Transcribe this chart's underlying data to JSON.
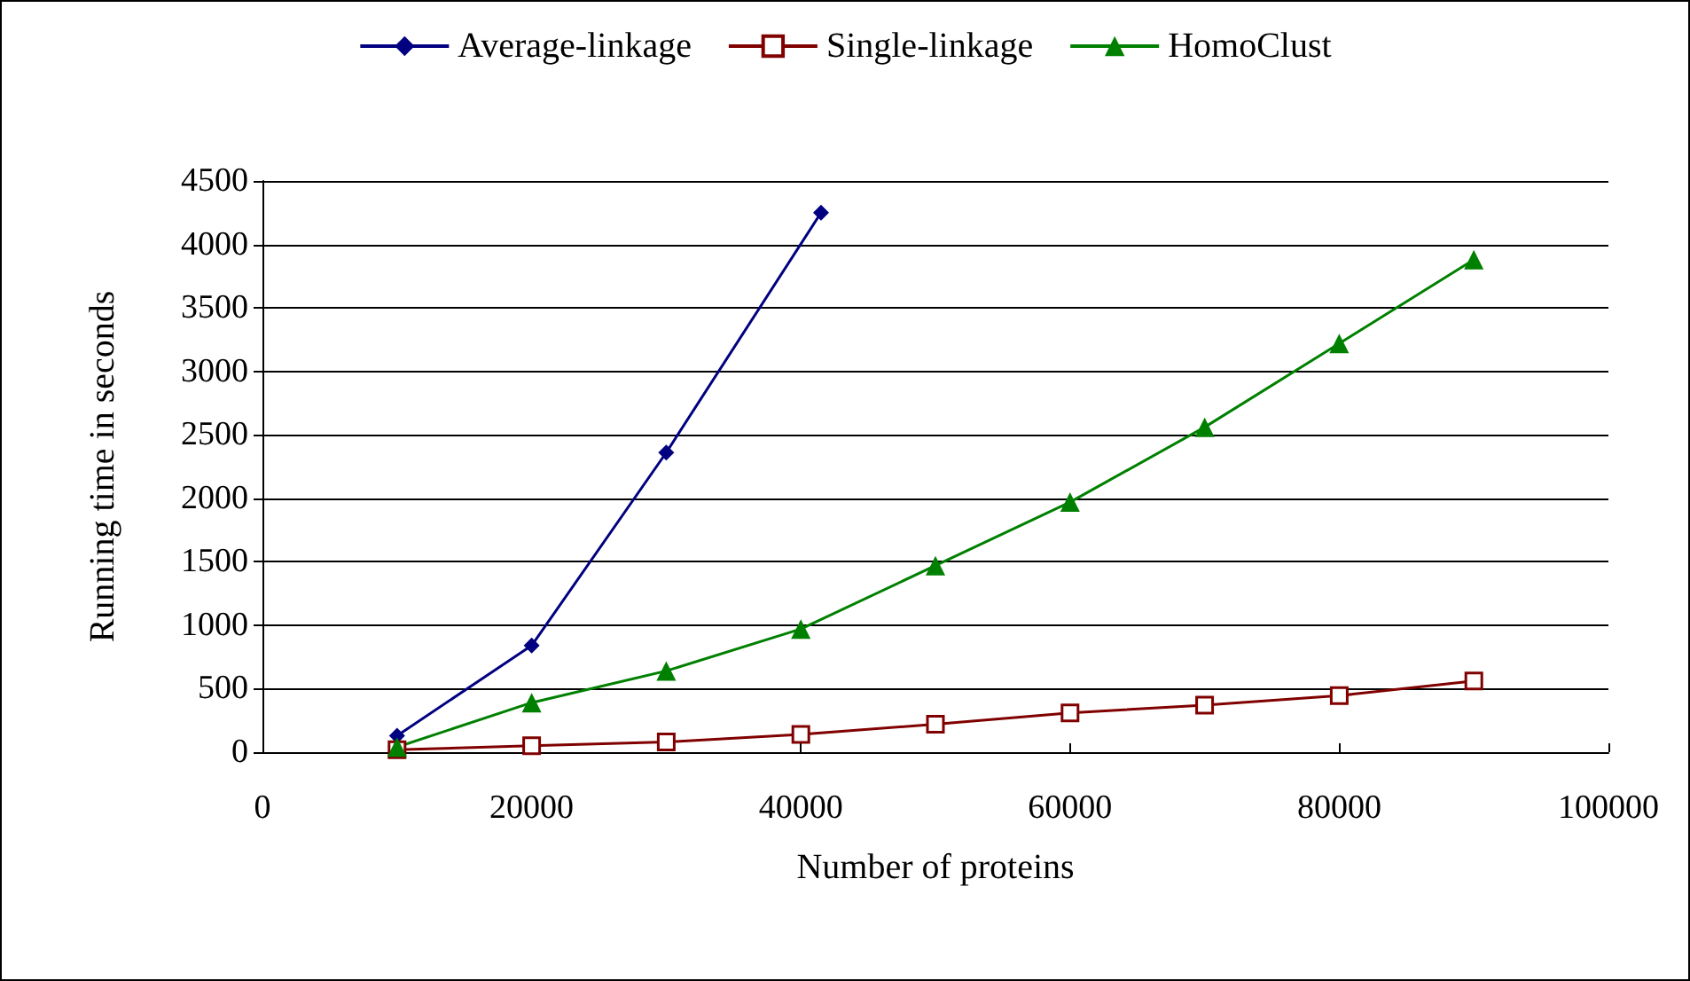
{
  "chart_data": {
    "type": "line",
    "xlabel": "Number of proteins",
    "ylabel": "Running time in seconds",
    "x": [
      10000,
      20000,
      30000,
      40000,
      50000,
      60000,
      70000,
      80000,
      90000
    ],
    "series": [
      {
        "name": "Average-linkage",
        "color": "#000080",
        "marker": "diamond",
        "x": [
          10000,
          20000,
          30000,
          41500
        ],
        "values": [
          130,
          840,
          2360,
          4250
        ]
      },
      {
        "name": "Single-linkage",
        "color": "#800000",
        "marker": "square",
        "values": [
          20,
          50,
          80,
          140,
          220,
          310,
          370,
          445,
          560
        ]
      },
      {
        "name": "HomoClust",
        "color": "#008000",
        "marker": "triangle",
        "values": [
          40,
          390,
          640,
          970,
          1470,
          1970,
          2560,
          3220,
          3880
        ]
      }
    ],
    "xlim": [
      0,
      100000
    ],
    "xticks": [
      0,
      20000,
      40000,
      60000,
      80000,
      100000
    ],
    "ylim": [
      0,
      4500
    ],
    "yticks": [
      0,
      500,
      1000,
      1500,
      2000,
      2500,
      3000,
      3500,
      4000,
      4500
    ],
    "grid": "y",
    "legend": "top",
    "line_style": "solid"
  }
}
